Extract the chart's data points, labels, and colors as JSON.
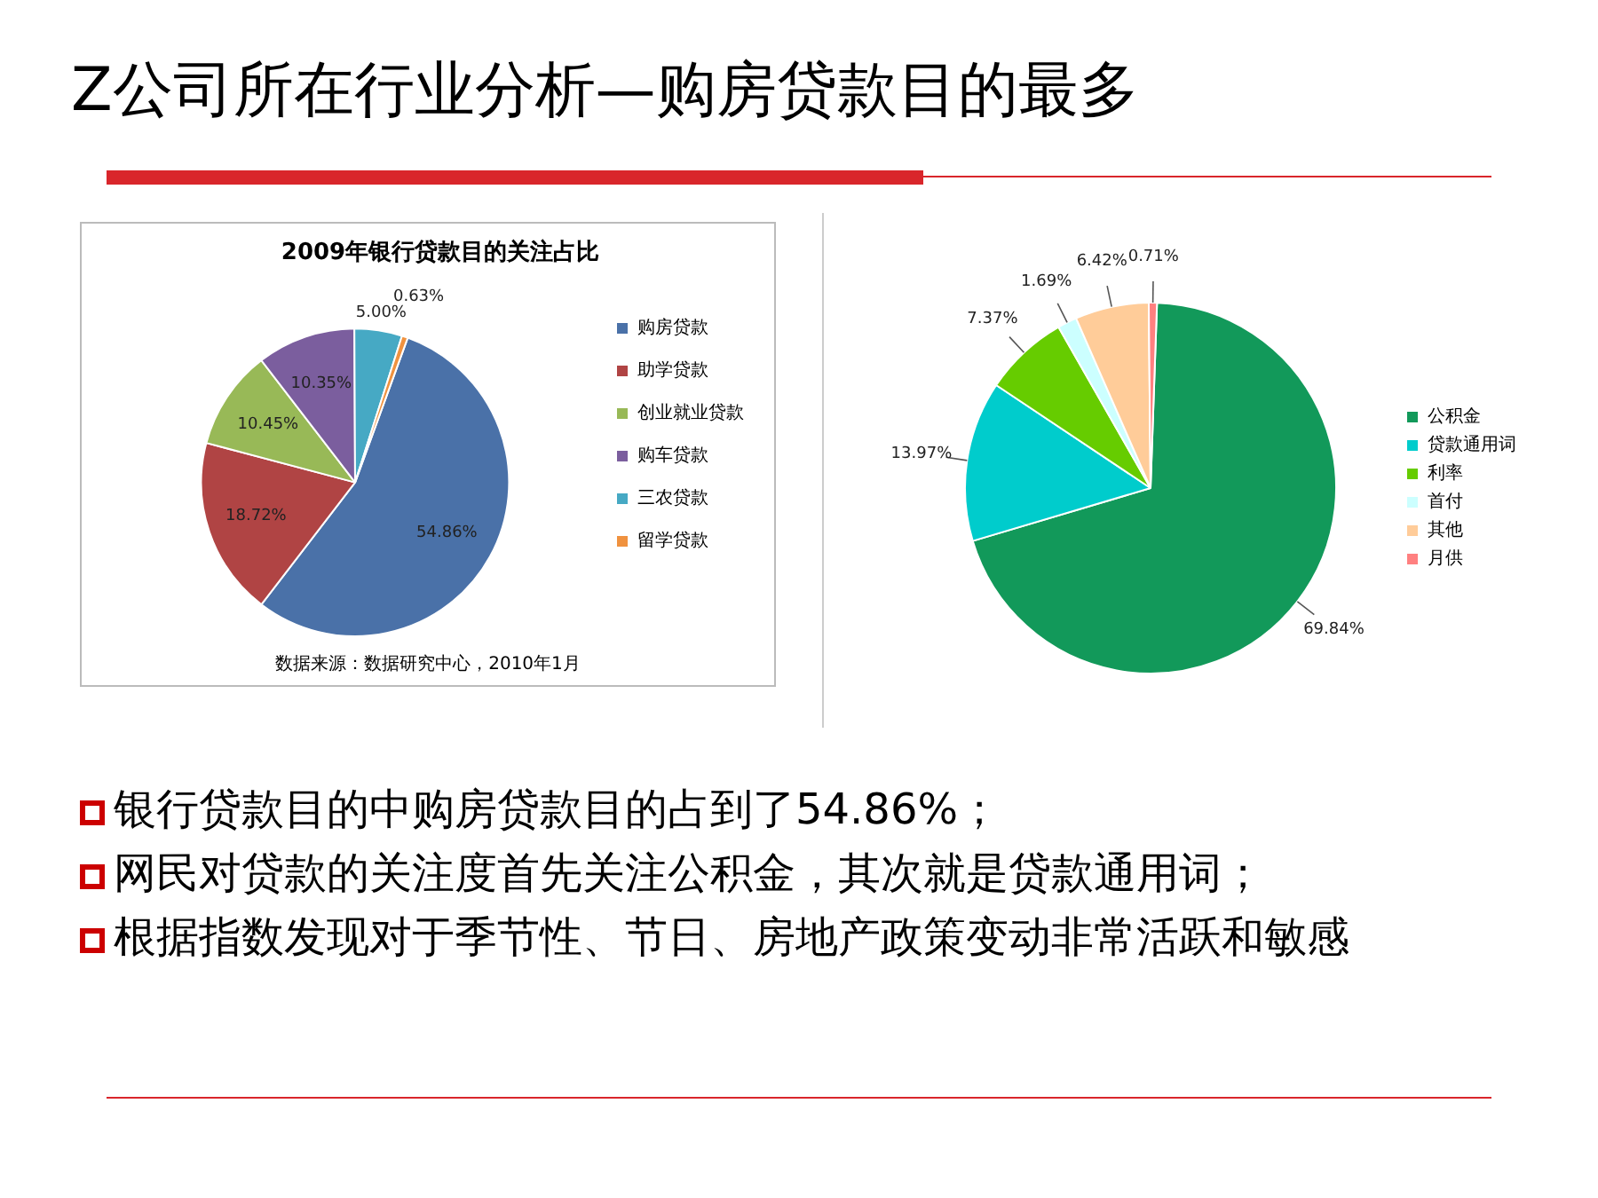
{
  "chart_data": [
    {
      "type": "pie",
      "title": "2009年银行贷款目的关注占比",
      "categories": [
        "购房贷款",
        "助学贷款",
        "创业就业贷款",
        "购车贷款",
        "三农贷款",
        "留学贷款"
      ],
      "values": [
        54.86,
        18.72,
        10.45,
        10.35,
        5.0,
        0.63
      ],
      "colors": [
        "#4a71a8",
        "#b04444",
        "#98b957",
        "#7b5e9e",
        "#46a9c4",
        "#f0923f"
      ],
      "value_labels": [
        "54.86%",
        "18.72%",
        "10.45%",
        "10.35%",
        "5.00%",
        "0.63%"
      ],
      "legend": "right",
      "annotations": [
        "数据来源：数据研究中心，2010年1月"
      ]
    },
    {
      "type": "pie",
      "categories": [
        "公积金",
        "贷款通用词",
        "利率",
        "首付",
        "其他",
        "月供"
      ],
      "values": [
        69.84,
        13.97,
        7.37,
        1.69,
        6.42,
        0.71
      ],
      "colors": [
        "#12995a",
        "#00cccc",
        "#66cc00",
        "#ccffff",
        "#ffcc99",
        "#ff8080"
      ],
      "value_labels": [
        "69.84%",
        "13.97%",
        "7.37%",
        "1.69%",
        "6.42%",
        "0.71%"
      ],
      "legend": "right"
    },
    {
      "type": "other",
      "title": "Z公司所在行业分析—购房贷款目的最多",
      "annotations": [
        "银行贷款目的中购房贷款目的占到了54.86%；",
        "网民对贷款的关注度首先关注公积金，其次就是贷款通用词；",
        "根据指数发现对于季节性、节日、房地产政策变动非常活跃和敏感"
      ]
    }
  ]
}
